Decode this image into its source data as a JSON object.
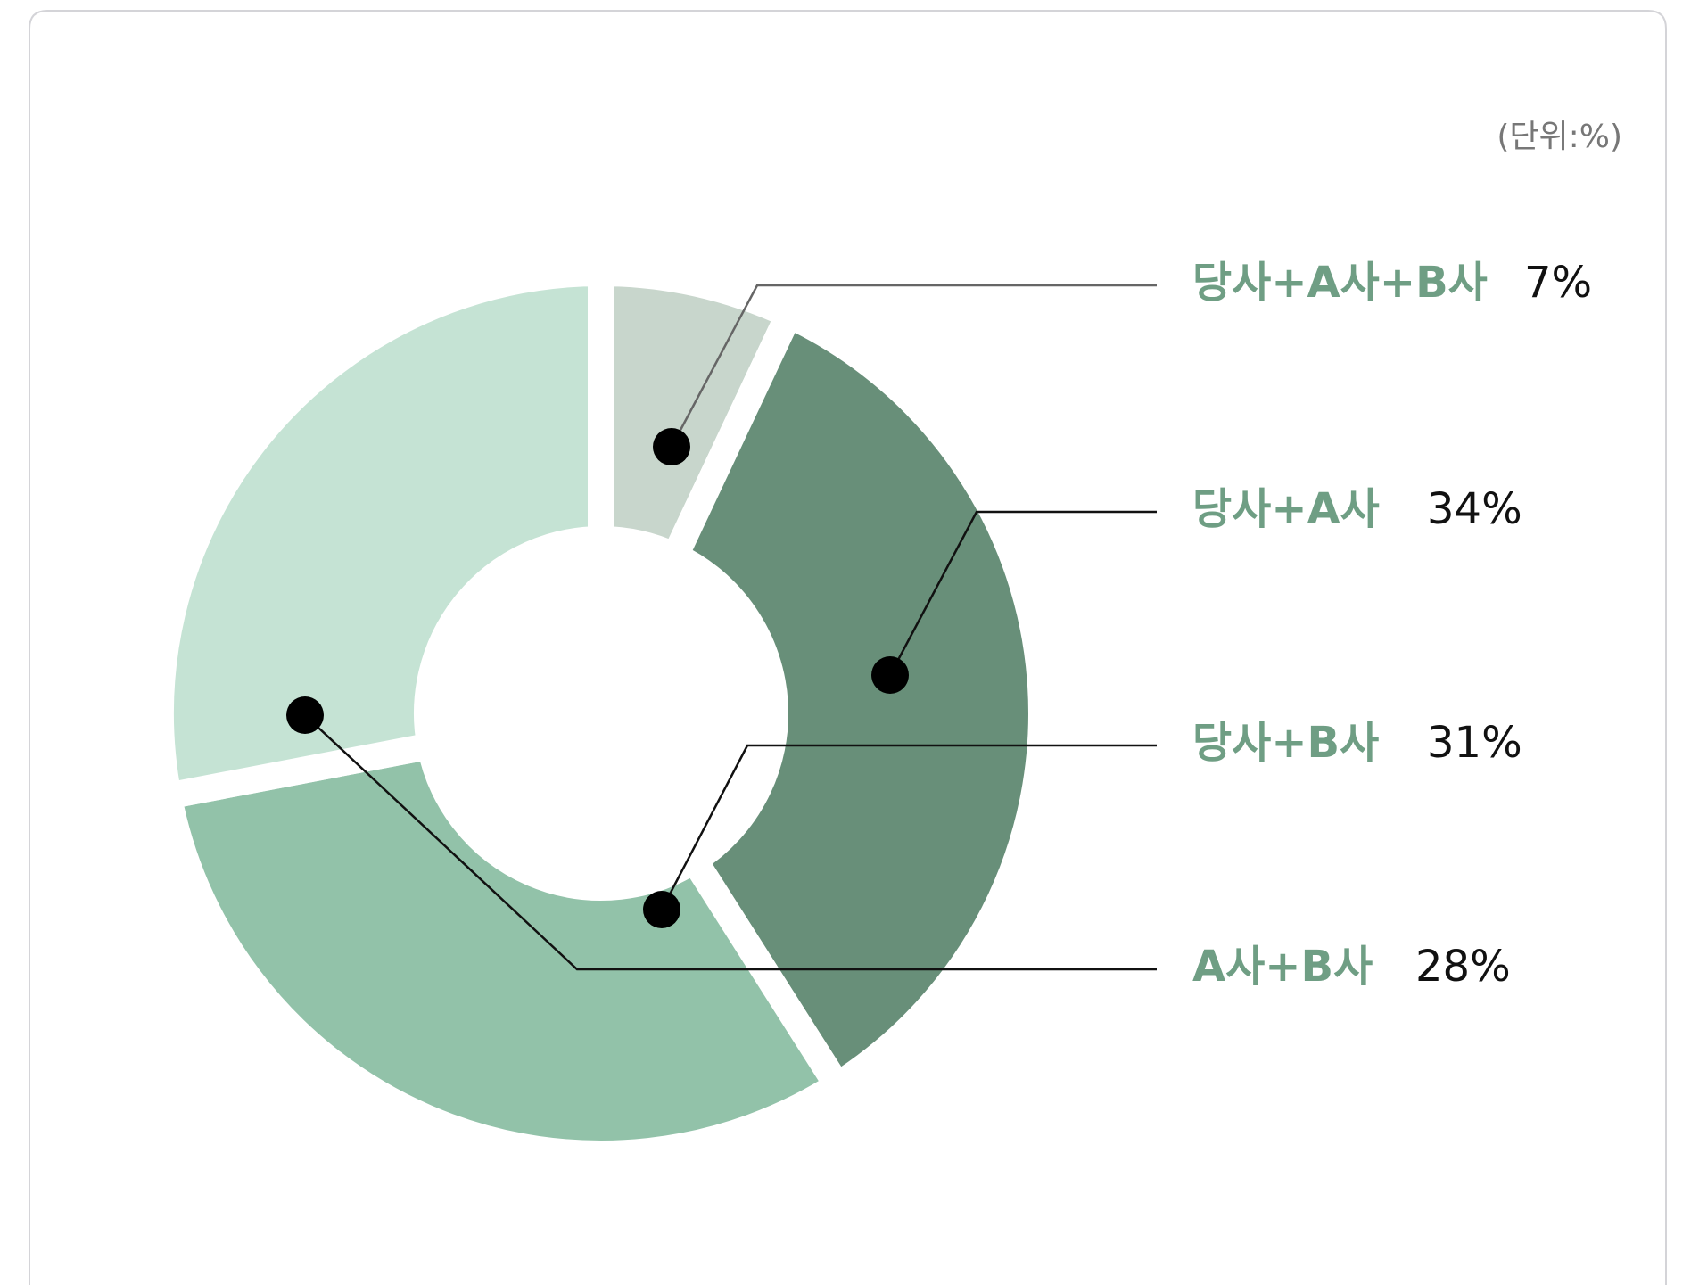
{
  "chart_data": {
    "type": "donut",
    "unit_label": "(단위:%)",
    "categories": [
      "당사+A사+B사",
      "당사+A사",
      "당사+B사",
      "A사+B사"
    ],
    "values": [
      7,
      34,
      31,
      28
    ],
    "value_labels": [
      "7%",
      "34%",
      "31%",
      "28%"
    ],
    "colors": [
      "#c8d6cc",
      "#688f79",
      "#92c2a9",
      "#c5e3d4"
    ],
    "label_color": "#6f9e84"
  }
}
